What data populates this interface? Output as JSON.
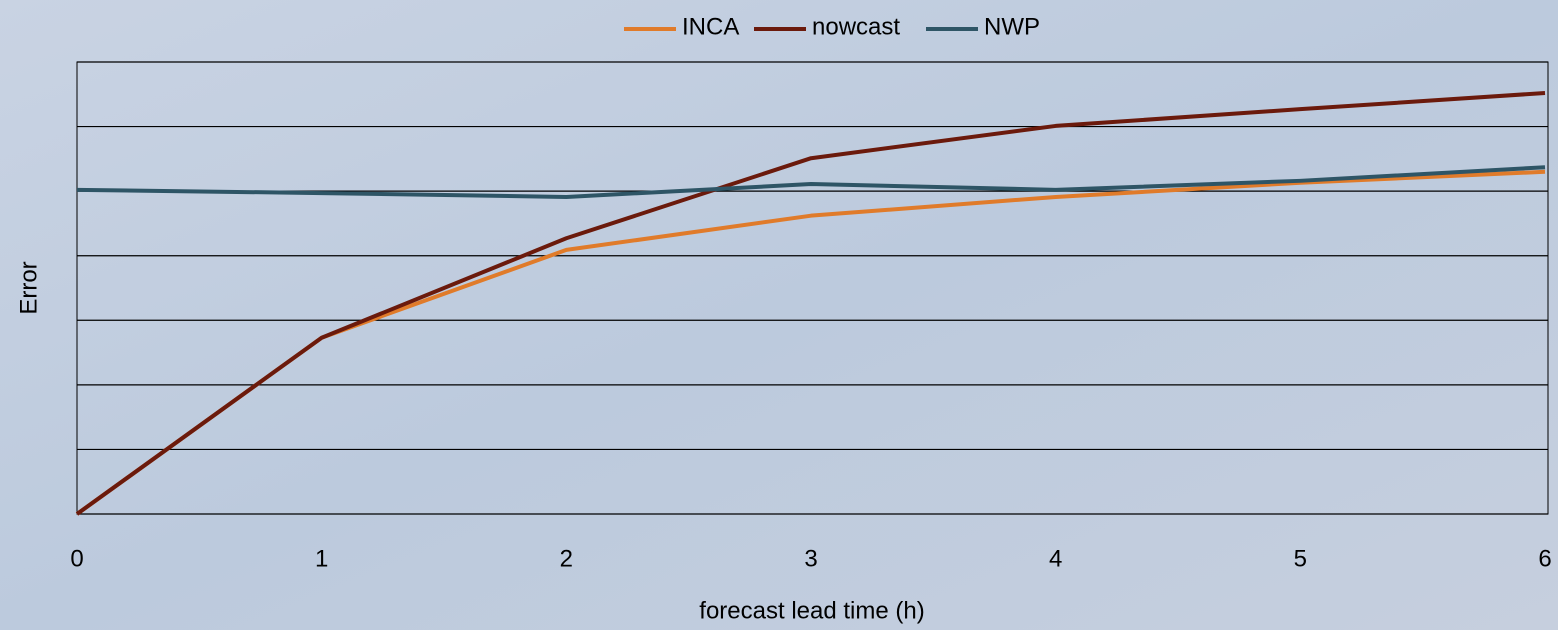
{
  "chart_data": {
    "type": "line",
    "x_label": "forecast lead time (h)",
    "y_label": "Error",
    "x": [
      0,
      1,
      2,
      3,
      4,
      5,
      6
    ],
    "series": [
      {
        "name": "INCA",
        "color": "#e07b2a",
        "values": [
          0,
          2.73,
          4.09,
          4.62,
          4.91,
          5.13,
          5.3
        ]
      },
      {
        "name": "nowcast",
        "color": "#6b1a0c",
        "values": [
          0,
          2.73,
          4.27,
          5.51,
          6.01,
          6.27,
          6.52
        ]
      },
      {
        "name": "NWP",
        "color": "#2e5566",
        "values": [
          5.02,
          4.97,
          4.91,
          5.11,
          5.02,
          5.16,
          5.37
        ]
      }
    ],
    "xlim": [
      0,
      6
    ],
    "xticks": [
      0,
      1,
      2,
      3,
      4,
      5,
      6
    ],
    "ylim": [
      0,
      7
    ],
    "yticks": [
      0,
      1,
      2,
      3,
      4,
      5,
      6,
      7
    ],
    "ytick_labels": false,
    "grid": true,
    "legend": "top"
  }
}
